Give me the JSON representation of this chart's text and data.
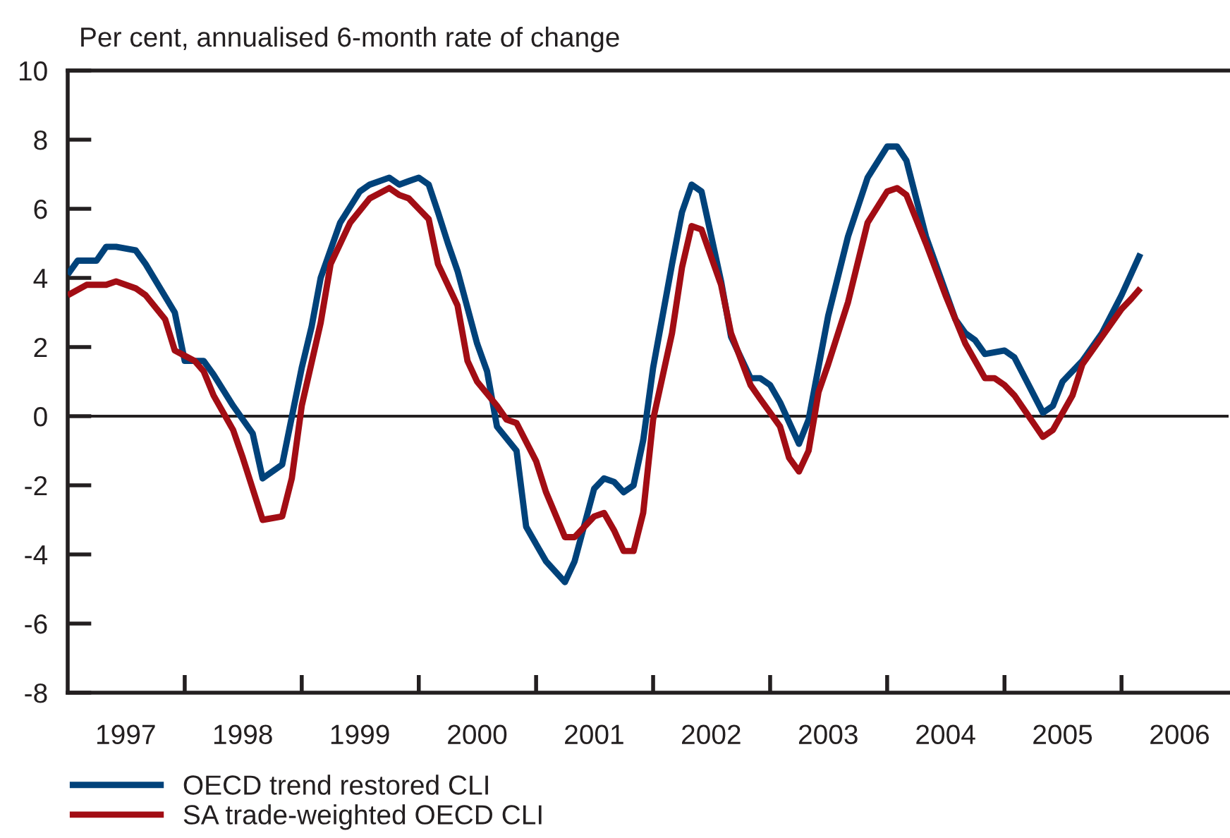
{
  "chart_data": {
    "type": "line",
    "ylabel": "Per cent, annualised 6-month rate of change",
    "xlim": [
      "1997-01",
      "2006-12"
    ],
    "xticks": [
      {
        "value": "1997-07-01",
        "label": "1997"
      },
      {
        "value": "1998-07-01",
        "label": "1998"
      },
      {
        "value": "1999-07-01",
        "label": "1999"
      },
      {
        "value": "2000-07-01",
        "label": "2000"
      },
      {
        "value": "2001-07-01",
        "label": "2001"
      },
      {
        "value": "2002-07-01",
        "label": "2002"
      },
      {
        "value": "2003-07-01",
        "label": "2003"
      },
      {
        "value": "2004-07-01",
        "label": "2004"
      },
      {
        "value": "2005-07-01",
        "label": "2005"
      },
      {
        "value": "2006-07-01",
        "label": "2006"
      },
      {
        "value": "1998-01-01",
        "label": null
      },
      {
        "value": "1999-01-01",
        "label": null
      },
      {
        "value": "2000-01-01",
        "label": null
      },
      {
        "value": "2001-01-01",
        "label": null
      },
      {
        "value": "2002-01-01",
        "label": null
      },
      {
        "value": "2003-01-01",
        "label": null
      },
      {
        "value": "2004-01-01",
        "label": null
      },
      {
        "value": "2005-01-01",
        "label": null
      },
      {
        "value": "2006-01-01",
        "label": null
      }
    ],
    "ylim": [
      -8,
      10
    ],
    "yticks": [
      -8,
      -6,
      -4,
      -2,
      0,
      2,
      4,
      6,
      8,
      10
    ],
    "ref_lines": [
      {
        "axis": "y",
        "value": 0,
        "color": "#231f20"
      }
    ],
    "grid": false,
    "legend": "bottom left",
    "line_style": "solid",
    "series": [
      {
        "name": "OECD trend restored CLI",
        "color": "#00427a",
        "x": [
          "1997-01",
          "1997-02",
          "1997-04",
          "1997-05",
          "1997-06",
          "1997-08",
          "1997-09",
          "1997-12",
          "1998-01",
          "1998-03",
          "1998-04",
          "1998-06",
          "1998-08",
          "1998-09",
          "1998-11",
          "1999-01",
          "1999-02",
          "1999-03",
          "1999-05",
          "1999-07",
          "1999-08",
          "1999-10",
          "1999-11",
          "1999-12",
          "2000-01",
          "2000-02",
          "2000-03",
          "2000-04",
          "2000-05",
          "2000-07",
          "2000-08",
          "2000-09",
          "2000-11",
          "2000-12",
          "2001-02",
          "2001-04",
          "2001-05",
          "2001-07",
          "2001-08",
          "2001-09",
          "2001-10",
          "2001-11",
          "2001-12",
          "2002-01",
          "2002-03",
          "2002-04",
          "2002-05",
          "2002-06",
          "2002-08",
          "2002-09",
          "2002-11",
          "2002-12",
          "2003-01",
          "2003-02",
          "2003-04",
          "2003-05",
          "2003-07",
          "2003-09",
          "2003-11",
          "2004-01",
          "2004-02",
          "2004-03",
          "2004-05",
          "2004-08",
          "2004-09",
          "2004-10",
          "2004-11",
          "2005-01",
          "2005-02",
          "2005-05",
          "2005-06",
          "2005-07",
          "2005-09",
          "2005-11",
          "2006-01",
          "2006-03"
        ],
        "values": [
          4.1,
          4.5,
          4.5,
          4.9,
          4.9,
          4.8,
          4.4,
          3.0,
          1.6,
          1.6,
          1.2,
          0.3,
          -0.5,
          -1.8,
          -1.4,
          1.4,
          2.6,
          4.0,
          5.6,
          6.5,
          6.7,
          6.9,
          6.7,
          6.8,
          6.9,
          6.7,
          5.9,
          5.0,
          4.2,
          2.1,
          1.3,
          -0.3,
          -1.0,
          -3.2,
          -4.2,
          -4.8,
          -4.2,
          -2.1,
          -1.8,
          -1.9,
          -2.2,
          -2.0,
          -0.7,
          1.4,
          4.4,
          5.9,
          6.7,
          6.5,
          3.9,
          2.3,
          1.1,
          1.1,
          0.9,
          0.4,
          -0.8,
          -0.1,
          2.9,
          5.2,
          6.9,
          7.8,
          7.8,
          7.4,
          5.2,
          2.8,
          2.4,
          2.2,
          1.8,
          1.9,
          1.7,
          0.1,
          0.3,
          1.0,
          1.6,
          2.4,
          3.5,
          4.7
        ]
      },
      {
        "name": "SA trade-weighted OECD CLI",
        "color": "#a20d14",
        "x": [
          "1997-01",
          "1997-03",
          "1997-05",
          "1997-06",
          "1997-08",
          "1997-09",
          "1997-11",
          "1997-12",
          "1998-02",
          "1998-03",
          "1998-04",
          "1998-06",
          "1998-07",
          "1998-09",
          "1998-11",
          "1998-12",
          "1999-01",
          "1999-03",
          "1999-04",
          "1999-06",
          "1999-08",
          "1999-10",
          "1999-11",
          "1999-12",
          "2000-01",
          "2000-02",
          "2000-03",
          "2000-05",
          "2000-06",
          "2000-07",
          "2000-09",
          "2000-10",
          "2000-11",
          "2001-01",
          "2001-02",
          "2001-04",
          "2001-05",
          "2001-07",
          "2001-08",
          "2001-09",
          "2001-10",
          "2001-11",
          "2001-12",
          "2002-01",
          "2002-03",
          "2002-04",
          "2002-05",
          "2002-06",
          "2002-08",
          "2002-09",
          "2002-11",
          "2002-12",
          "2003-02",
          "2003-03",
          "2003-04",
          "2003-05",
          "2003-06",
          "2003-07",
          "2003-09",
          "2003-11",
          "2004-01",
          "2004-02",
          "2004-03",
          "2004-05",
          "2004-07",
          "2004-09",
          "2004-11",
          "2004-12",
          "2005-01",
          "2005-02",
          "2005-05",
          "2005-06",
          "2005-08",
          "2005-09",
          "2006-01",
          "2006-02",
          "2006-03"
        ],
        "values": [
          3.5,
          3.8,
          3.8,
          3.9,
          3.7,
          3.5,
          2.8,
          1.9,
          1.6,
          1.3,
          0.6,
          -0.4,
          -1.2,
          -3.0,
          -2.9,
          -1.8,
          0.3,
          2.7,
          4.4,
          5.6,
          6.3,
          6.6,
          6.4,
          6.3,
          6.0,
          5.7,
          4.4,
          3.2,
          1.6,
          1.0,
          0.3,
          -0.1,
          -0.2,
          -1.3,
          -2.2,
          -3.5,
          -3.5,
          -2.9,
          -2.8,
          -3.3,
          -3.9,
          -3.9,
          -2.8,
          -0.1,
          2.4,
          4.3,
          5.5,
          5.4,
          3.8,
          2.4,
          0.9,
          0.5,
          -0.3,
          -1.2,
          -1.6,
          -1.0,
          0.7,
          1.5,
          3.3,
          5.6,
          6.5,
          6.6,
          6.4,
          5.0,
          3.5,
          2.1,
          1.1,
          1.1,
          0.9,
          0.6,
          -0.6,
          -0.4,
          0.6,
          1.5,
          3.1,
          3.4,
          3.7
        ]
      }
    ]
  }
}
